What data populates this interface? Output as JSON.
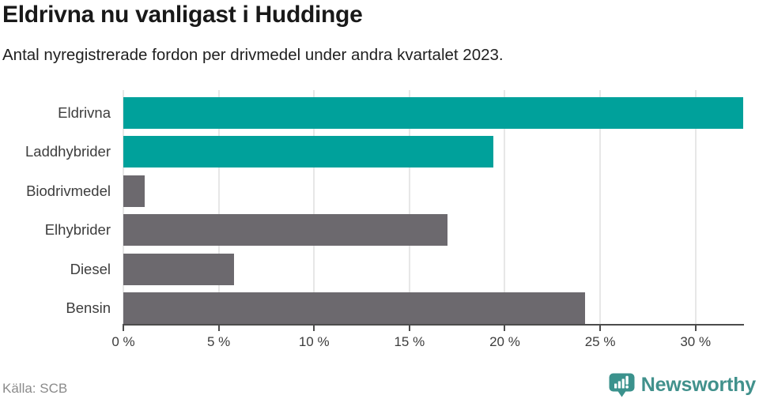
{
  "header": {
    "title": "Eldrivna nu vanligast i Huddinge",
    "subtitle": "Antal nyregistrerade fordon per drivmedel under andra kvartalet 2023."
  },
  "chart_data": {
    "type": "bar",
    "orientation": "horizontal",
    "title": "Eldrivna nu vanligast i Huddinge",
    "subtitle": "Antal nyregistrerade fordon per drivmedel under andra kvartalet 2023.",
    "categories": [
      "Eldrivna",
      "Laddhybrider",
      "Biodrivmedel",
      "Elhybrider",
      "Diesel",
      "Bensin"
    ],
    "values": [
      32.5,
      19.4,
      1.1,
      17.0,
      5.8,
      24.2
    ],
    "unit": "%",
    "xlim": [
      0,
      32.5
    ],
    "xticks": [
      0,
      5,
      10,
      15,
      20,
      25,
      30
    ],
    "xtick_labels": [
      "0 %",
      "5 %",
      "10 %",
      "15 %",
      "20 %",
      "25 %",
      "30 %"
    ],
    "grid": true,
    "legend": false,
    "bar_colors": [
      "#00a19b",
      "#00a19b",
      "#6c696e",
      "#6c696e",
      "#6c696e",
      "#6c696e"
    ],
    "highlight_color": "#00a19b",
    "base_color": "#6c696e"
  },
  "footer": {
    "source": "Källa: SCB",
    "brand": "Newsworthy",
    "brand_color": "#41918c",
    "brand_icon": "newsworthy-bubble-barchart-icon",
    "brand_icon_color": "#3b928d"
  }
}
